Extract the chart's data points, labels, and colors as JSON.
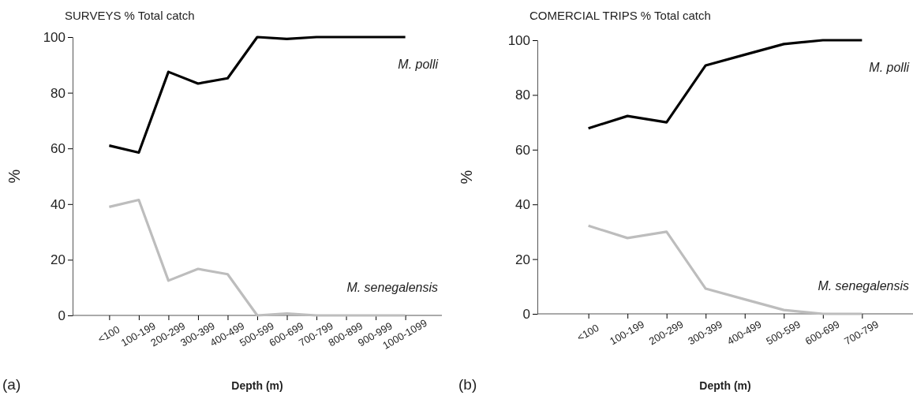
{
  "chart_data": [
    {
      "type": "line",
      "title": "SURVEYS % Total catch",
      "xlabel": "Depth (m)",
      "ylabel": "%",
      "annotations": [
        "(a)"
      ],
      "categories": [
        "<100",
        "100-199",
        "200-299",
        "300-399",
        "400-499",
        "500-599",
        "600-699",
        "700-799",
        "800-899",
        "900-999",
        "1000-1099"
      ],
      "ylim": [
        0,
        100
      ],
      "yticks": [
        0,
        20,
        40,
        60,
        80,
        100
      ],
      "grid": false,
      "legend": false,
      "marker": "none",
      "line_style": "solid",
      "series": [
        {
          "name": "M. polli",
          "color": "#000000",
          "values": [
            61,
            58.5,
            87.5,
            83.3,
            85.2,
            100,
            99.3,
            100,
            100,
            100,
            100
          ]
        },
        {
          "name": "M. senegalensis",
          "color": "#bdbdbd",
          "values": [
            39,
            41.5,
            12.5,
            16.7,
            14.8,
            0,
            0.7,
            0,
            0,
            0,
            0
          ]
        }
      ]
    },
    {
      "type": "line",
      "title": "COMERCIAL TRIPS % Total catch",
      "xlabel": "Depth (m)",
      "ylabel": "%",
      "annotations": [
        "(b)"
      ],
      "categories": [
        "<100",
        "100-199",
        "200-299",
        "300-399",
        "400-499",
        "500-599",
        "600-699",
        "700-799"
      ],
      "ylim": [
        0,
        100
      ],
      "yticks": [
        0,
        20,
        40,
        60,
        80,
        100
      ],
      "grid": false,
      "legend": false,
      "marker": "none",
      "line_style": "solid",
      "series": [
        {
          "name": "M. polli",
          "color": "#000000",
          "values": [
            67.8,
            72.3,
            70,
            90.8,
            94.7,
            98.6,
            100,
            100
          ]
        },
        {
          "name": "M. senegalensis",
          "color": "#bdbdbd",
          "values": [
            32.2,
            27.7,
            30,
            9.2,
            5.3,
            1.4,
            0,
            0
          ]
        }
      ]
    }
  ]
}
